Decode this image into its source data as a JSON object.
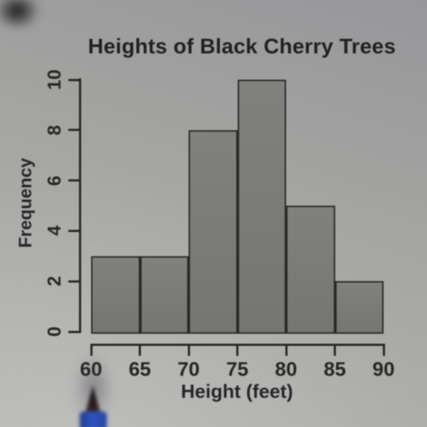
{
  "chart_data": {
    "type": "bar",
    "subtype": "histogram",
    "title": "Heights of Black Cherry Trees",
    "xlabel": "Height (feet)",
    "ylabel": "Frequency",
    "bin_edges": [
      60,
      65,
      70,
      75,
      80,
      85,
      90
    ],
    "values": [
      3,
      3,
      8,
      10,
      5,
      2
    ],
    "x_ticks": [
      "60",
      "65",
      "70",
      "75",
      "80",
      "85",
      "90"
    ],
    "y_ticks": [
      "0",
      "2",
      "4",
      "6",
      "8",
      "10"
    ],
    "xlim": [
      60,
      90
    ],
    "ylim": [
      0,
      10
    ],
    "grid": false,
    "legend": null,
    "colors": {
      "bar_fill": "#7b7b79",
      "bar_border": "#262624",
      "axis": "#232321",
      "text": "#1e1e1e",
      "background": "#a7a7a5"
    }
  },
  "photo": {
    "pen": {
      "body_color": "#2f54c0",
      "tip_color": "#241a1c"
    }
  }
}
